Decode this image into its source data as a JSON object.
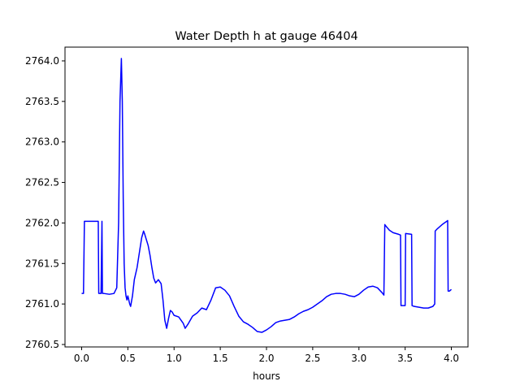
{
  "chart_data": {
    "type": "line",
    "title": "Water Depth h at gauge 46404",
    "xlabel": "hours",
    "ylabel": "",
    "xlim": [
      -0.18,
      4.18
    ],
    "ylim": [
      2760.47,
      2764.17
    ],
    "xticks": [
      0.0,
      0.5,
      1.0,
      1.5,
      2.0,
      2.5,
      3.0,
      3.5,
      4.0
    ],
    "xtick_labels": [
      "0.0",
      "0.5",
      "1.0",
      "1.5",
      "2.0",
      "2.5",
      "3.0",
      "3.5",
      "4.0"
    ],
    "yticks": [
      2760.5,
      2761.0,
      2761.5,
      2762.0,
      2762.5,
      2763.0,
      2763.5,
      2764.0
    ],
    "ytick_labels": [
      "2760.5",
      "2761.0",
      "2761.5",
      "2762.0",
      "2762.5",
      "2763.0",
      "2763.5",
      "2764.0"
    ],
    "grid": false,
    "series": [
      {
        "color": "#0000ff",
        "x": [
          0.0,
          0.02,
          0.03,
          0.18,
          0.185,
          0.21,
          0.22,
          0.225,
          0.24,
          0.3,
          0.35,
          0.38,
          0.4,
          0.415,
          0.43,
          0.44,
          0.45,
          0.46,
          0.47,
          0.48,
          0.49,
          0.5,
          0.52,
          0.53,
          0.55,
          0.57,
          0.6,
          0.62,
          0.65,
          0.67,
          0.68,
          0.72,
          0.74,
          0.76,
          0.78,
          0.8,
          0.83,
          0.86,
          0.88,
          0.9,
          0.92,
          0.94,
          0.96,
          0.98,
          1.0,
          1.05,
          1.1,
          1.12,
          1.15,
          1.2,
          1.25,
          1.3,
          1.35,
          1.4,
          1.45,
          1.5,
          1.55,
          1.6,
          1.65,
          1.7,
          1.75,
          1.8,
          1.85,
          1.9,
          1.95,
          2.0,
          2.05,
          2.1,
          2.15,
          2.2,
          2.25,
          2.3,
          2.35,
          2.4,
          2.45,
          2.5,
          2.55,
          2.6,
          2.65,
          2.7,
          2.75,
          2.8,
          2.85,
          2.9,
          2.95,
          3.0,
          3.05,
          3.1,
          3.15,
          3.2,
          3.25,
          3.27,
          3.28,
          3.3,
          3.33,
          3.37,
          3.4,
          3.43,
          3.45,
          3.455,
          3.48,
          3.5,
          3.505,
          3.57,
          3.575,
          3.6,
          3.65,
          3.7,
          3.75,
          3.8,
          3.82,
          3.825,
          3.85,
          3.9,
          3.95,
          3.96,
          3.965,
          3.98,
          4.0
        ],
        "y": [
          2761.13,
          2761.13,
          2762.02,
          2762.02,
          2761.13,
          2761.13,
          2762.02,
          2761.13,
          2761.13,
          2761.12,
          2761.13,
          2761.2,
          2762.0,
          2763.5,
          2764.03,
          2763.5,
          2762.3,
          2761.5,
          2761.2,
          2761.1,
          2761.05,
          2761.1,
          2761.0,
          2760.97,
          2761.1,
          2761.3,
          2761.45,
          2761.6,
          2761.82,
          2761.9,
          2761.87,
          2761.72,
          2761.6,
          2761.45,
          2761.32,
          2761.26,
          2761.3,
          2761.25,
          2761.05,
          2760.8,
          2760.7,
          2760.82,
          2760.92,
          2760.9,
          2760.86,
          2760.84,
          2760.76,
          2760.7,
          2760.75,
          2760.85,
          2760.89,
          2760.95,
          2760.93,
          2761.05,
          2761.2,
          2761.21,
          2761.17,
          2761.1,
          2760.97,
          2760.85,
          2760.78,
          2760.75,
          2760.71,
          2760.66,
          2760.65,
          2760.68,
          2760.72,
          2760.77,
          2760.79,
          2760.8,
          2760.81,
          2760.84,
          2760.88,
          2760.91,
          2760.93,
          2760.96,
          2761.0,
          2761.04,
          2761.09,
          2761.12,
          2761.13,
          2761.13,
          2761.12,
          2761.1,
          2761.09,
          2761.12,
          2761.17,
          2761.21,
          2761.22,
          2761.2,
          2761.14,
          2761.11,
          2761.98,
          2761.95,
          2761.91,
          2761.88,
          2761.87,
          2761.86,
          2761.85,
          2760.98,
          2760.98,
          2760.98,
          2761.87,
          2761.86,
          2760.98,
          2760.97,
          2760.96,
          2760.95,
          2760.95,
          2760.97,
          2761.0,
          2761.9,
          2761.93,
          2761.98,
          2762.02,
          2762.03,
          2761.16,
          2761.16,
          2761.18
        ]
      }
    ]
  }
}
